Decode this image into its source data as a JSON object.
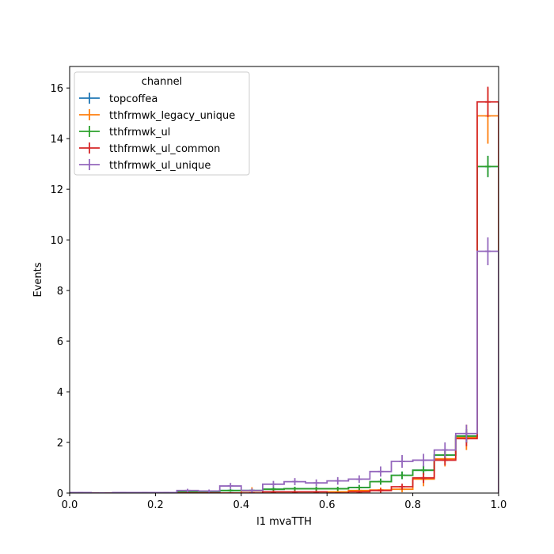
{
  "chart_data": {
    "type": "step-histogram",
    "xlabel": "l1 mvaTTH",
    "ylabel": "Events",
    "xlim": [
      0.0,
      1.0
    ],
    "ylim": [
      0.0,
      16.85
    ],
    "x_ticks": [
      "0.0",
      "0.2",
      "0.4",
      "0.6",
      "0.8",
      "1.0"
    ],
    "y_ticks": [
      "0",
      "2",
      "4",
      "6",
      "8",
      "10",
      "12",
      "14",
      "16"
    ],
    "grid": false,
    "legend": {
      "title": "channel",
      "placement": "top-left"
    },
    "bin_edges": [
      0.0,
      0.05,
      0.1,
      0.15,
      0.2,
      0.25,
      0.3,
      0.35,
      0.4,
      0.45,
      0.5,
      0.55,
      0.6,
      0.65,
      0.7,
      0.75,
      0.8,
      0.85,
      0.9,
      0.95,
      1.0
    ],
    "series": [
      {
        "name": "topcoffea",
        "color": "#1f77b4",
        "values": [
          0.0,
          0.0,
          0.0,
          0.0,
          0.0,
          0.05,
          0.05,
          0.1,
          0.1,
          0.15,
          0.17,
          0.17,
          0.17,
          0.22,
          0.45,
          0.7,
          0.9,
          1.5,
          2.25,
          12.9
        ],
        "errors": [
          0.0,
          0.0,
          0.0,
          0.0,
          0.0,
          0.05,
          0.05,
          0.05,
          0.05,
          0.08,
          0.08,
          0.08,
          0.08,
          0.1,
          0.12,
          0.15,
          0.18,
          0.22,
          0.28,
          0.42
        ]
      },
      {
        "name": "tthfrmwk_legacy_unique",
        "color": "#ff7f0e",
        "values": [
          0.0,
          0.0,
          0.0,
          0.0,
          0.0,
          0.0,
          0.0,
          0.0,
          0.08,
          0.05,
          0.05,
          0.05,
          0.05,
          0.1,
          0.12,
          0.15,
          0.55,
          1.35,
          2.2,
          14.9
        ],
        "errors": [
          0.0,
          0.0,
          0.0,
          0.0,
          0.0,
          0.0,
          0.0,
          0.0,
          0.15,
          0.05,
          0.05,
          0.05,
          0.05,
          0.08,
          0.1,
          0.12,
          0.28,
          0.3,
          0.5,
          1.1
        ]
      },
      {
        "name": "tthfrmwk_ul",
        "color": "#2ca02c",
        "values": [
          0.0,
          0.0,
          0.0,
          0.0,
          0.0,
          0.05,
          0.05,
          0.1,
          0.1,
          0.15,
          0.17,
          0.17,
          0.17,
          0.22,
          0.45,
          0.7,
          0.9,
          1.5,
          2.25,
          12.9
        ],
        "errors": [
          0.0,
          0.0,
          0.0,
          0.0,
          0.0,
          0.05,
          0.05,
          0.05,
          0.05,
          0.08,
          0.08,
          0.08,
          0.08,
          0.1,
          0.12,
          0.15,
          0.18,
          0.22,
          0.28,
          0.42
        ]
      },
      {
        "name": "tthfrmwk_ul_common",
        "color": "#d62728",
        "values": [
          0.0,
          0.0,
          0.0,
          0.0,
          0.0,
          0.0,
          0.0,
          0.0,
          0.0,
          0.05,
          0.05,
          0.05,
          0.0,
          0.05,
          0.1,
          0.25,
          0.6,
          1.3,
          2.15,
          15.45
        ],
        "errors": [
          0.0,
          0.0,
          0.0,
          0.0,
          0.0,
          0.0,
          0.0,
          0.0,
          0.0,
          0.05,
          0.05,
          0.05,
          0.0,
          0.05,
          0.08,
          0.12,
          0.2,
          0.2,
          0.3,
          0.6
        ]
      },
      {
        "name": "tthfrmwk_ul_unique",
        "color": "#9467bd",
        "values": [
          0.02,
          0.0,
          0.02,
          0.02,
          0.02,
          0.1,
          0.08,
          0.28,
          0.1,
          0.35,
          0.45,
          0.4,
          0.48,
          0.55,
          0.85,
          1.25,
          1.3,
          1.7,
          2.35,
          9.55
        ],
        "errors": [
          0.02,
          0.0,
          0.02,
          0.02,
          0.02,
          0.07,
          0.06,
          0.12,
          0.08,
          0.13,
          0.14,
          0.14,
          0.15,
          0.15,
          0.2,
          0.25,
          0.25,
          0.3,
          0.35,
          0.55
        ]
      }
    ]
  }
}
